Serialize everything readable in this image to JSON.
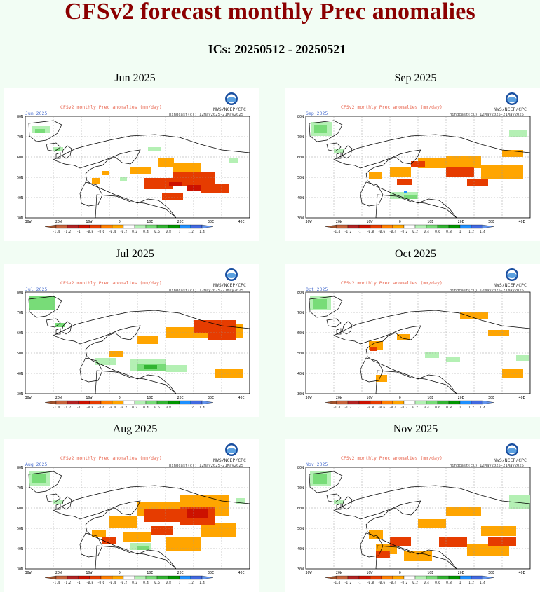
{
  "page": {
    "title": "CFSv2 forecast monthly Prec anomalies",
    "subtitle": "ICs: 20250512 - 20250521"
  },
  "map_common": {
    "header": "CFSv2 monthly Prec anomalies (mm/day)",
    "credit": "NWS/NCEP/CPC",
    "hindcast": "hindcast(cl) 12May2025-21May2025",
    "lat_labels": [
      "80N",
      "70N",
      "60N",
      "50N",
      "40N",
      "30N"
    ],
    "lon_labels": [
      "30W",
      "20W",
      "10W",
      "0",
      "10E",
      "20E",
      "30E",
      "40E"
    ],
    "colorbar": {
      "labels": [
        "-1.4",
        "-1.2",
        "-1",
        "-0.8",
        "-0.6",
        "-0.4",
        "-0.2",
        "0.2",
        "0.4",
        "0.6",
        "0.8",
        "1",
        "1.2",
        "1.4"
      ],
      "colors": [
        "#a0522d",
        "#c8643c",
        "#b22222",
        "#cc1100",
        "#e63c00",
        "#ff7f00",
        "#ffa500",
        "#ffffff",
        "#b4f0b4",
        "#78dc78",
        "#32b432",
        "#009600",
        "#1e90ff",
        "#4169e1",
        "#6495ed"
      ]
    }
  },
  "panels": [
    {
      "month": "Jun 2025",
      "corner_label": "Jun 2025",
      "pattern": "dry_east"
    },
    {
      "month": "Sep 2025",
      "corner_label": "Sep 2025",
      "pattern": "dry_central"
    },
    {
      "month": "Jul 2025",
      "corner_label": "Jul 2025",
      "pattern": "dry_north_wet_alps"
    },
    {
      "month": "Oct 2025",
      "corner_label": "Oct 2025",
      "pattern": "mostly_neutral"
    },
    {
      "month": "Aug 2025",
      "corner_label": "Aug 2025",
      "pattern": "dry_widespread"
    },
    {
      "month": "Nov 2025",
      "corner_label": "Nov 2025",
      "pattern": "dry_south"
    }
  ]
}
